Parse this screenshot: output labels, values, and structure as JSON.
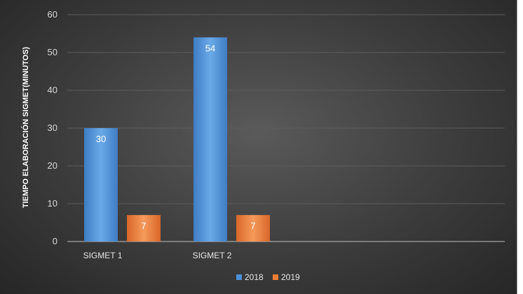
{
  "chart_data": {
    "type": "bar",
    "title": "",
    "xlabel": "",
    "ylabel": "TIEMPO ELABORACIÓN SIGMET(MINUTOS)",
    "categories": [
      "SIGMET 1",
      "SIGMET 2"
    ],
    "series": [
      {
        "name": "2018",
        "values": [
          30,
          54
        ],
        "color": "#4a8fd8"
      },
      {
        "name": "2019",
        "values": [
          7,
          7
        ],
        "color": "#ed7d31"
      }
    ],
    "ylim": [
      0,
      60
    ],
    "yticks": [
      0,
      10,
      20,
      30,
      40,
      50,
      60
    ],
    "grid": true,
    "legend_position": "bottom",
    "data_labels": true
  }
}
